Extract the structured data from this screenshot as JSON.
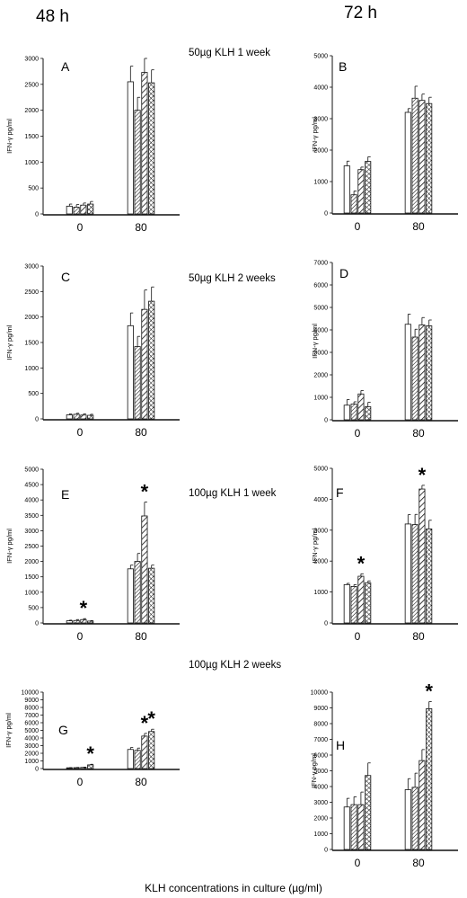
{
  "header": {
    "left": "48 h",
    "right": "72 h"
  },
  "x_title": "KLH concentrations in culture (µg/ml)",
  "chart_data": [
    {
      "type": "bar",
      "panel": "A",
      "condition": "50µg KLH  1 week",
      "ylabel": "IFN-γ pg/ml",
      "ylim": [
        0,
        3000
      ],
      "yticks": [
        0,
        500,
        1000,
        1500,
        2000,
        2500,
        3000
      ],
      "categories": [
        "0",
        "80"
      ],
      "series": [
        {
          "pattern": "open",
          "values": [
            150,
            2550
          ],
          "errors": [
            40,
            300
          ]
        },
        {
          "pattern": "hatch-fine",
          "values": [
            130,
            2000
          ],
          "errors": [
            50,
            250
          ]
        },
        {
          "pattern": "hatch-wide",
          "values": [
            170,
            2730
          ],
          "errors": [
            40,
            270
          ]
        },
        {
          "pattern": "crosshatch",
          "values": [
            190,
            2530
          ],
          "errors": [
            50,
            250
          ]
        }
      ],
      "stars": []
    },
    {
      "type": "bar",
      "panel": "B",
      "condition": "",
      "ylabel": "IFN-γ pg/ml",
      "ylim": [
        0,
        5000
      ],
      "yticks": [
        0,
        1000,
        2000,
        3000,
        4000,
        5000
      ],
      "categories": [
        "0",
        "80"
      ],
      "series": [
        {
          "pattern": "open",
          "values": [
            1500,
            3200
          ],
          "errors": [
            150,
            120
          ]
        },
        {
          "pattern": "hatch-fine",
          "values": [
            580,
            3650
          ],
          "errors": [
            120,
            380
          ]
        },
        {
          "pattern": "hatch-wide",
          "values": [
            1380,
            3580
          ],
          "errors": [
            80,
            200
          ]
        },
        {
          "pattern": "crosshatch",
          "values": [
            1640,
            3480
          ],
          "errors": [
            150,
            200
          ]
        }
      ],
      "stars": []
    },
    {
      "type": "bar",
      "panel": "C",
      "condition": "50µg KLH  2 weeks",
      "ylabel": "IFN-γ pg/ml",
      "ylim": [
        0,
        3000
      ],
      "yticks": [
        0,
        500,
        1000,
        1500,
        2000,
        2500,
        3000
      ],
      "categories": [
        "0",
        "80"
      ],
      "series": [
        {
          "pattern": "open",
          "values": [
            80,
            1830
          ],
          "errors": [
            20,
            250
          ]
        },
        {
          "pattern": "hatch-fine",
          "values": [
            90,
            1420
          ],
          "errors": [
            20,
            200
          ]
        },
        {
          "pattern": "hatch-wide",
          "values": [
            75,
            2150
          ],
          "errors": [
            25,
            380
          ]
        },
        {
          "pattern": "crosshatch",
          "values": [
            70,
            2310
          ],
          "errors": [
            20,
            280
          ]
        }
      ],
      "stars": []
    },
    {
      "type": "bar",
      "panel": "D",
      "condition": "",
      "ylabel": "IFN-γ pg/ml",
      "ylim": [
        0,
        7000
      ],
      "yticks": [
        0,
        1000,
        2000,
        3000,
        4000,
        5000,
        6000,
        7000
      ],
      "categories": [
        "0",
        "80"
      ],
      "series": [
        {
          "pattern": "open",
          "values": [
            650,
            4250
          ],
          "errors": [
            250,
            450
          ]
        },
        {
          "pattern": "hatch-fine",
          "values": [
            700,
            3680
          ],
          "errors": [
            100,
            350
          ]
        },
        {
          "pattern": "hatch-wide",
          "values": [
            1150,
            4220
          ],
          "errors": [
            150,
            330
          ]
        },
        {
          "pattern": "crosshatch",
          "values": [
            580,
            4180
          ],
          "errors": [
            200,
            260
          ]
        }
      ],
      "stars": []
    },
    {
      "type": "bar",
      "panel": "E",
      "condition": "100µg KLH  1 week",
      "ylabel": "IFN-γ pg/ml",
      "ylim": [
        0,
        5000
      ],
      "yticks": [
        0,
        500,
        1000,
        1500,
        2000,
        2500,
        3000,
        3500,
        4000,
        4500,
        5000
      ],
      "categories": [
        "0",
        "80"
      ],
      "series": [
        {
          "pattern": "open",
          "values": [
            70,
            1760
          ],
          "errors": [
            20,
            120
          ]
        },
        {
          "pattern": "hatch-fine",
          "values": [
            80,
            2000
          ],
          "errors": [
            30,
            260
          ]
        },
        {
          "pattern": "hatch-wide",
          "values": [
            110,
            3480
          ],
          "errors": [
            30,
            450
          ]
        },
        {
          "pattern": "crosshatch",
          "values": [
            60,
            1780
          ],
          "errors": [
            15,
            100
          ]
        }
      ],
      "stars": [
        [
          0,
          2
        ],
        [
          1,
          2
        ]
      ]
    },
    {
      "type": "bar",
      "panel": "F",
      "condition": "",
      "ylabel": "IFN-γ pg/ml",
      "ylim": [
        0,
        5000
      ],
      "yticks": [
        0,
        1000,
        2000,
        3000,
        4000,
        5000
      ],
      "categories": [
        "0",
        "80"
      ],
      "series": [
        {
          "pattern": "open",
          "values": [
            1240,
            3200
          ],
          "errors": [
            40,
            300
          ]
        },
        {
          "pattern": "hatch-fine",
          "values": [
            1180,
            3180
          ],
          "errors": [
            60,
            330
          ]
        },
        {
          "pattern": "hatch-wide",
          "values": [
            1510,
            4330
          ],
          "errors": [
            80,
            120
          ]
        },
        {
          "pattern": "crosshatch",
          "values": [
            1300,
            3040
          ],
          "errors": [
            60,
            280
          ]
        }
      ],
      "stars": [
        [
          0,
          2
        ],
        [
          1,
          2
        ]
      ]
    },
    {
      "type": "bar",
      "panel": "G",
      "condition": "100µg KLH  2 weeks",
      "ylabel": "IFN-γ pg/ml",
      "ylim": [
        0,
        10000
      ],
      "yticks": [
        0,
        1000,
        2000,
        3000,
        4000,
        5000,
        6000,
        7000,
        8000,
        9000,
        10000
      ],
      "categories": [
        "0",
        "80"
      ],
      "series": [
        {
          "pattern": "open",
          "values": [
            100,
            2500
          ],
          "errors": [
            30,
            250
          ]
        },
        {
          "pattern": "hatch-fine",
          "values": [
            120,
            2380
          ],
          "errors": [
            30,
            300
          ]
        },
        {
          "pattern": "hatch-wide",
          "values": [
            150,
            4250
          ],
          "errors": [
            40,
            350
          ]
        },
        {
          "pattern": "crosshatch",
          "values": [
            480,
            4850
          ],
          "errors": [
            80,
            300
          ]
        }
      ],
      "stars": [
        [
          0,
          3
        ],
        [
          1,
          2
        ],
        [
          1,
          3
        ]
      ]
    },
    {
      "type": "bar",
      "panel": "H",
      "condition": "",
      "ylabel": "IFN-γ pg/ml",
      "ylim": [
        0,
        10000
      ],
      "yticks": [
        0,
        1000,
        2000,
        3000,
        4000,
        5000,
        6000,
        7000,
        8000,
        9000,
        10000
      ],
      "categories": [
        "0",
        "80"
      ],
      "series": [
        {
          "pattern": "open",
          "values": [
            2700,
            3800
          ],
          "errors": [
            550,
            700
          ]
        },
        {
          "pattern": "hatch-fine",
          "values": [
            2850,
            3950
          ],
          "errors": [
            500,
            900
          ]
        },
        {
          "pattern": "hatch-wide",
          "values": [
            2850,
            5650
          ],
          "errors": [
            800,
            700
          ]
        },
        {
          "pattern": "crosshatch",
          "values": [
            4700,
            8950
          ],
          "errors": [
            800,
            450
          ]
        }
      ],
      "stars": [
        [
          1,
          3
        ]
      ]
    }
  ]
}
